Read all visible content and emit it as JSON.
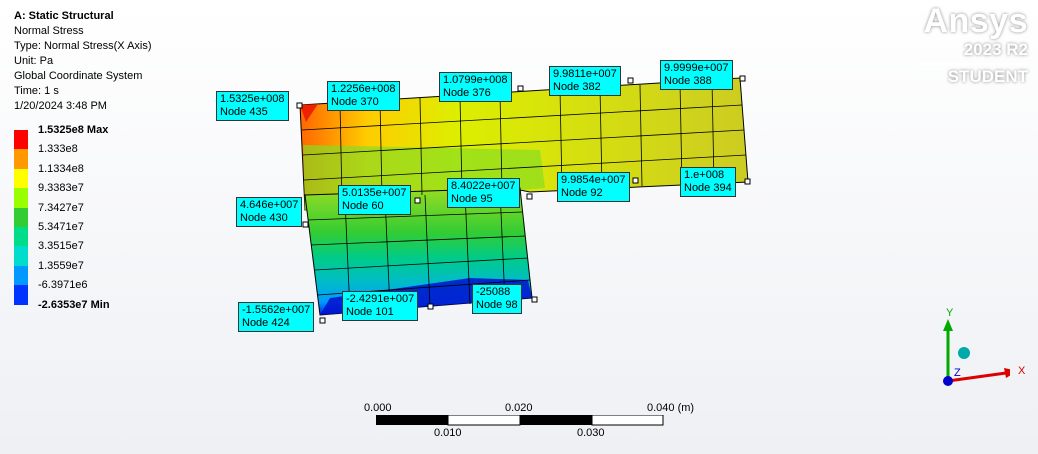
{
  "info": {
    "title": "A: Static Structural",
    "lines": [
      "Normal Stress",
      "Type: Normal Stress(X Axis)",
      "Unit: Pa",
      "Global Coordinate System",
      "Time: 1 s",
      "1/20/2024 3:48 PM"
    ]
  },
  "legend": {
    "labels": [
      "1.5325e8 Max",
      "1.333e8",
      "1.1334e8",
      "9.3383e7",
      "7.3427e7",
      "5.3471e7",
      "3.3515e7",
      "1.3559e7",
      "-6.3971e6",
      "-2.6353e7 Min"
    ],
    "colors": [
      "#ff0000",
      "#ff9900",
      "#ffff00",
      "#99ff00",
      "#33cc33",
      "#00dd88",
      "#00ddcc",
      "#0099ff",
      "#0033ff",
      "#0000cc"
    ]
  },
  "brand": {
    "logo": "Ansys",
    "version": "2023 R2",
    "edition": "STUDENT"
  },
  "probes": [
    {
      "value": "1.5325e+008",
      "node": "Node 435"
    },
    {
      "value": "1.2256e+008",
      "node": "Node 370"
    },
    {
      "value": "1.0799e+008",
      "node": "Node 376"
    },
    {
      "value": "9.9811e+007",
      "node": "Node 382"
    },
    {
      "value": "9.9999e+007",
      "node": "Node 388"
    },
    {
      "value": "4.646e+007",
      "node": "Node 430"
    },
    {
      "value": "5.0135e+007",
      "node": "Node 60"
    },
    {
      "value": "8.4022e+007",
      "node": "Node 95"
    },
    {
      "value": "9.9854e+007",
      "node": "Node 92"
    },
    {
      "value": "1.e+008",
      "node": "Node 394"
    },
    {
      "value": "-1.5562e+007",
      "node": "Node 424"
    },
    {
      "value": "-2.4291e+007",
      "node": "Node 101"
    },
    {
      "value": "-25088",
      "node": "Node 98"
    }
  ],
  "scale": {
    "top": [
      "0.000",
      "0.020",
      "0.040 (m)"
    ],
    "bottom": [
      "0.010",
      "0.030"
    ]
  },
  "triad": {
    "x": "X",
    "y": "Y",
    "z": "Z"
  }
}
